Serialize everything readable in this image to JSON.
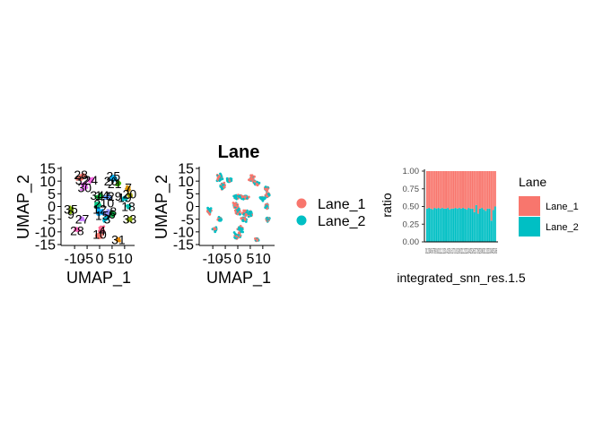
{
  "chart_data": [
    {
      "panel": "umap-clusters",
      "type": "scatter",
      "title": "",
      "xlabel": "UMAP_1",
      "ylabel": "UMAP_2",
      "xlim": [
        -14,
        14
      ],
      "ylim": [
        -15,
        15
      ],
      "x_ticks": [
        "-10",
        "-5",
        "0",
        "5",
        "10"
      ],
      "y_ticks": [
        "-15",
        "-10",
        "-5",
        "0",
        "5",
        "10",
        "15"
      ],
      "cluster_labels": [
        {
          "label": "28",
          "x": -7.5,
          "y": 12.5
        },
        {
          "label": "25",
          "x": 5.5,
          "y": 12
        },
        {
          "label": "32",
          "x": -7,
          "y": 10.5
        },
        {
          "label": "24",
          "x": -3.5,
          "y": 10.5
        },
        {
          "label": "26",
          "x": 4.5,
          "y": 10
        },
        {
          "label": "21",
          "x": 6,
          "y": 9
        },
        {
          "label": "30",
          "x": -6,
          "y": 7.5
        },
        {
          "label": "7",
          "x": 11.5,
          "y": 7.5
        },
        {
          "label": "20",
          "x": 12,
          "y": 5
        },
        {
          "label": "34",
          "x": -1,
          "y": 4.5
        },
        {
          "label": "14",
          "x": 1,
          "y": 4.5
        },
        {
          "label": "5",
          "x": 4,
          "y": 4
        },
        {
          "label": "29",
          "x": 6,
          "y": 4
        },
        {
          "label": "19",
          "x": 10,
          "y": 3.5
        },
        {
          "label": "10",
          "x": 3,
          "y": 1.5
        },
        {
          "label": "2",
          "x": -1,
          "y": 1
        },
        {
          "label": "18",
          "x": 11.5,
          "y": 0
        },
        {
          "label": "35",
          "x": -11.5,
          "y": -1
        },
        {
          "label": "12",
          "x": 0,
          "y": -1
        },
        {
          "label": "9",
          "x": -11.5,
          "y": -3
        },
        {
          "label": "8",
          "x": 5.5,
          "y": -2
        },
        {
          "label": "6",
          "x": 5,
          "y": -3
        },
        {
          "label": "15",
          "x": 1,
          "y": -3.5
        },
        {
          "label": "27",
          "x": -7,
          "y": -5
        },
        {
          "label": "33",
          "x": 12,
          "y": -5
        },
        {
          "label": "3",
          "x": 3,
          "y": -5
        },
        {
          "label": "28",
          "x": -9,
          "y": -9.5
        },
        {
          "label": "4",
          "x": 1,
          "y": -9.5
        },
        {
          "label": "10",
          "x": 0,
          "y": -11
        },
        {
          "label": "31",
          "x": 7.5,
          "y": -13
        }
      ]
    },
    {
      "panel": "umap-lane",
      "type": "scatter",
      "title": "Lane",
      "xlabel": "UMAP_1",
      "ylabel": "UMAP_2",
      "xlim": [
        -14,
        14
      ],
      "ylim": [
        -15,
        15
      ],
      "x_ticks": [
        "-10",
        "-5",
        "0",
        "5",
        "10"
      ],
      "y_ticks": [
        "-15",
        "-10",
        "-5",
        "0",
        "5",
        "10",
        "15"
      ],
      "legend": {
        "position": "right",
        "entries": [
          {
            "label": "Lane_1",
            "color": "#F8766D"
          },
          {
            "label": "Lane_2",
            "color": "#00BFC4"
          }
        ]
      }
    },
    {
      "panel": "lane-ratio",
      "type": "bar",
      "stacked": true,
      "xlabel": "integrated_snn_res.1.5",
      "ylabel": "ratio",
      "ylim": [
        0,
        1
      ],
      "y_ticks": [
        "0.00",
        "0.25",
        "0.50",
        "0.75",
        "1.00"
      ],
      "x_tick_labels": "0123456789101112131415161718192021222324252627282930313233343536",
      "categories": [
        "0",
        "1",
        "2",
        "3",
        "4",
        "5",
        "6",
        "7",
        "8",
        "9",
        "10",
        "11",
        "12",
        "13",
        "14",
        "15",
        "16",
        "17",
        "18",
        "19",
        "20",
        "21",
        "22",
        "23",
        "24",
        "25",
        "26",
        "27",
        "28",
        "29",
        "30",
        "31",
        "32",
        "33",
        "34",
        "35",
        "36"
      ],
      "series": [
        {
          "name": "Lane_1",
          "color": "#F8766D",
          "values": [
            0.53,
            0.52,
            0.53,
            0.54,
            0.52,
            0.53,
            0.52,
            0.53,
            0.52,
            0.53,
            0.53,
            0.52,
            0.54,
            0.53,
            0.53,
            0.52,
            0.53,
            0.52,
            0.53,
            0.52,
            0.53,
            0.54,
            0.52,
            0.53,
            0.53,
            0.58,
            0.48,
            0.6,
            0.53,
            0.52,
            0.54,
            0.56,
            0.53,
            0.53,
            0.7,
            0.55,
            0.5
          ]
        },
        {
          "name": "Lane_2",
          "color": "#00BFC4",
          "values": [
            0.47,
            0.48,
            0.47,
            0.46,
            0.48,
            0.47,
            0.48,
            0.47,
            0.48,
            0.47,
            0.47,
            0.48,
            0.46,
            0.47,
            0.47,
            0.48,
            0.47,
            0.48,
            0.47,
            0.48,
            0.47,
            0.46,
            0.48,
            0.47,
            0.47,
            0.42,
            0.52,
            0.4,
            0.47,
            0.48,
            0.46,
            0.44,
            0.47,
            0.47,
            0.3,
            0.45,
            0.5
          ]
        }
      ],
      "legend": {
        "title": "Lane",
        "position": "right",
        "entries": [
          {
            "label": "Lane_1",
            "color": "#F8766D"
          },
          {
            "label": "Lane_2",
            "color": "#00BFC4"
          }
        ]
      }
    }
  ]
}
